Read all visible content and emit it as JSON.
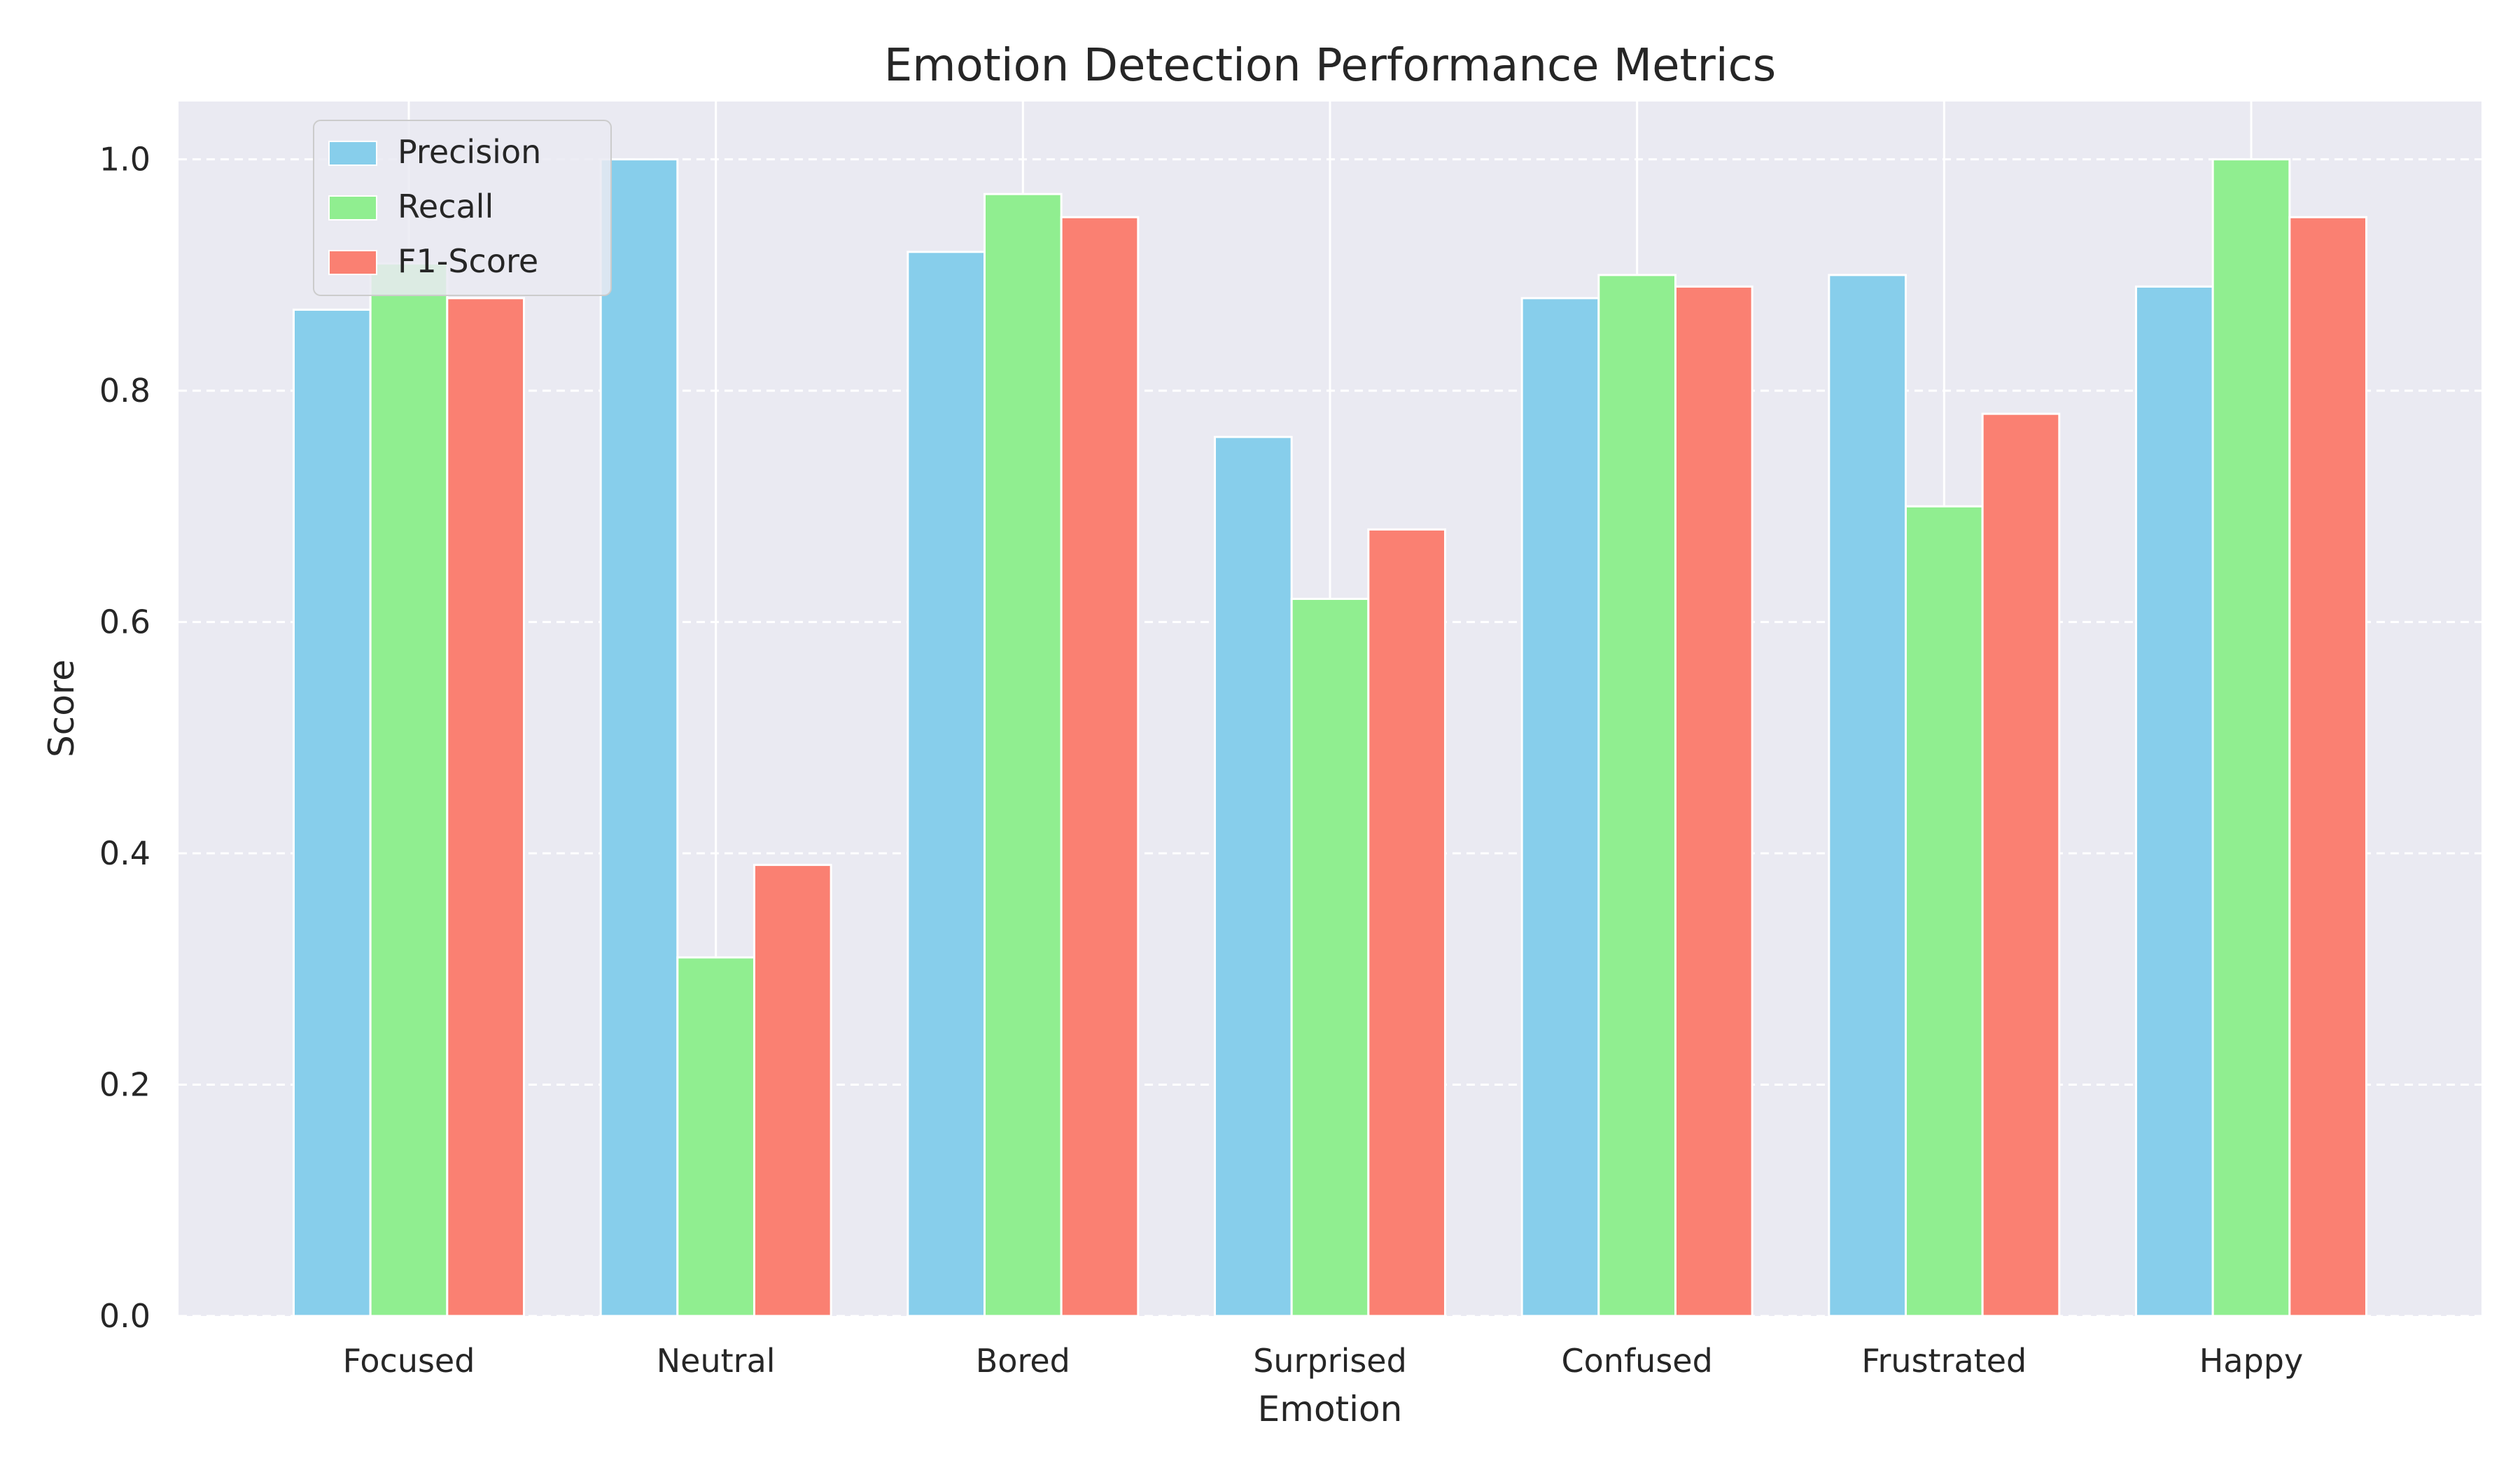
{
  "chart_data": {
    "type": "bar",
    "title": "Emotion Detection Performance Metrics",
    "xlabel": "Emotion",
    "ylabel": "Score",
    "categories": [
      "Focused",
      "Neutral",
      "Bored",
      "Surprised",
      "Confused",
      "Frustrated",
      "Happy"
    ],
    "series": [
      {
        "name": "Precision",
        "color": "#87CEEB",
        "values": [
          0.87,
          1.0,
          0.92,
          0.76,
          0.88,
          0.9,
          0.89
        ]
      },
      {
        "name": "Recall",
        "color": "#90EE90",
        "values": [
          0.91,
          0.31,
          0.97,
          0.62,
          0.9,
          0.7,
          1.0
        ]
      },
      {
        "name": "F1-Score",
        "color": "#FA8072",
        "values": [
          0.88,
          0.39,
          0.95,
          0.68,
          0.89,
          0.78,
          0.95
        ]
      }
    ],
    "ylim": [
      0,
      1.05
    ],
    "yticks": [
      "0.0",
      "0.2",
      "0.4",
      "0.6",
      "0.8",
      "1.0"
    ],
    "grid": {
      "y": "dashed",
      "x": "solid"
    },
    "legend": "top-left",
    "background": "#EAEAF2"
  }
}
